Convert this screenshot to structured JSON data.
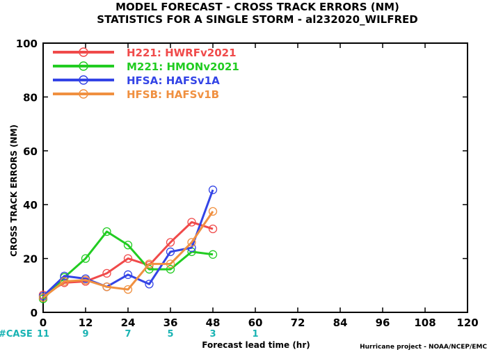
{
  "chart_data": {
    "type": "line",
    "title_line1": "MODEL FORECAST - CROSS TRACK ERRORS (NM)",
    "title_line2": "STATISTICS FOR A SINGLE STORM - al232020_WILFRED",
    "xlabel": "Forecast lead time (hr)",
    "ylabel": "CROSS TRACK ERRORS (NM)",
    "xlim": [
      0,
      120
    ],
    "ylim": [
      0,
      100
    ],
    "xticks": [
      "0",
      "12",
      "24",
      "36",
      "48",
      "60",
      "72",
      "84",
      "96",
      "108",
      "120"
    ],
    "yticks": [
      "0",
      "20",
      "40",
      "60",
      "80",
      "100"
    ],
    "grid": false,
    "legend_position": "top-left",
    "case_label": "#CASE",
    "cases": [
      {
        "x": 0,
        "label": "11"
      },
      {
        "x": 12,
        "label": "9"
      },
      {
        "x": 24,
        "label": "7"
      },
      {
        "x": 36,
        "label": "5"
      },
      {
        "x": 48,
        "label": "3"
      },
      {
        "x": 60,
        "label": "1"
      }
    ],
    "credit": "Hurricane project - NOAA/NCEP/EMC",
    "series": [
      {
        "name": "H221: HWRFv2021",
        "color": "#f04a4a",
        "x": [
          0,
          6,
          12,
          18,
          24,
          30,
          36,
          42,
          48
        ],
        "y": [
          6.5,
          11,
          11.5,
          14.5,
          20,
          17.5,
          26,
          33.5,
          31
        ]
      },
      {
        "name": "M221: HMONv2021",
        "color": "#22cc22",
        "x": [
          0,
          6,
          12,
          18,
          24,
          30,
          36,
          42,
          48
        ],
        "y": [
          5,
          13,
          20,
          30,
          25,
          16,
          16,
          22.5,
          21.5
        ]
      },
      {
        "name": "HFSA: HAFSv1A",
        "color": "#3344e6",
        "x": [
          0,
          6,
          12,
          18,
          24,
          30,
          36,
          42,
          48
        ],
        "y": [
          6,
          13.5,
          12.5,
          9.5,
          14,
          10.5,
          22.5,
          24,
          45.5
        ]
      },
      {
        "name": "HFSB: HAFSv1B",
        "color": "#f09040",
        "x": [
          0,
          6,
          12,
          18,
          24,
          30,
          36,
          42,
          48
        ],
        "y": [
          5.5,
          11.5,
          12,
          9.5,
          8.5,
          18,
          18,
          26,
          37.5
        ]
      }
    ]
  }
}
